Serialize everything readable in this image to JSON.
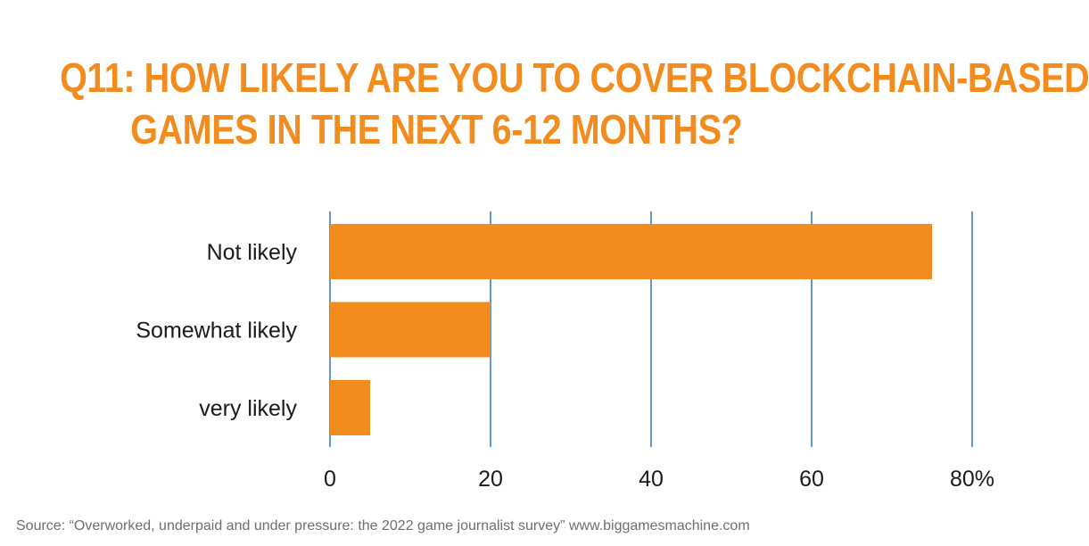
{
  "title": {
    "line1": "Q11: HOW LIKELY ARE YOU TO COVER BLOCKCHAIN-BASED",
    "line2": "GAMES IN THE NEXT 6-12 MONTHS?"
  },
  "source": "Source: “Overworked, underpaid and under pressure: the 2022 game journalist survey” www.biggamesmachine.com",
  "colors": {
    "bar": "#f28c1f",
    "grid": "#3d7ebf",
    "title": "#f28c1f"
  },
  "chart_data": {
    "type": "bar",
    "orientation": "horizontal",
    "title": "Q11: HOW LIKELY ARE YOU TO COVER BLOCKCHAIN-BASED GAMES IN THE NEXT 6-12 MONTHS?",
    "categories": [
      "Not likely",
      "Somewhat likely",
      "very likely"
    ],
    "values": [
      75,
      20,
      5
    ],
    "xlim": [
      0,
      80
    ],
    "xticks": [
      0,
      20,
      40,
      60,
      80
    ],
    "xtick_labels": [
      "0",
      "20",
      "40",
      "60",
      "80%"
    ],
    "grid": true,
    "legend": false
  }
}
